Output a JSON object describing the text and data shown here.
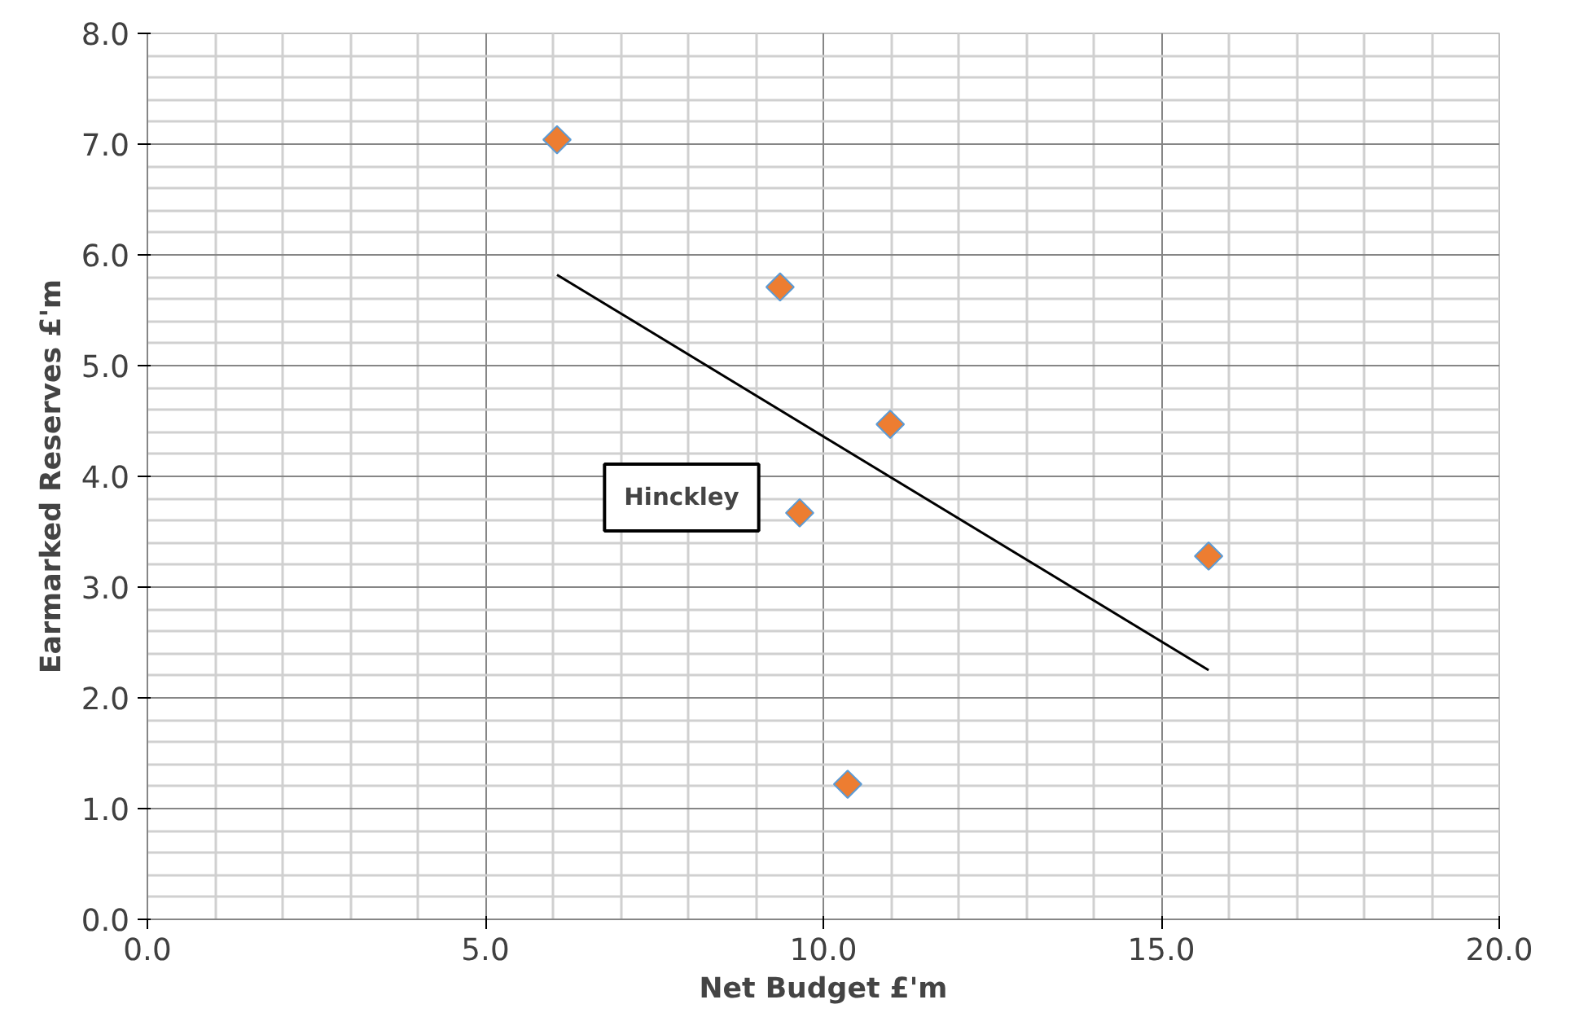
{
  "chart_data": {
    "type": "scatter",
    "xlabel": "Net Budget £'m",
    "ylabel": "Earmarked Reserves £'m",
    "xlim": [
      0,
      20
    ],
    "xticks": [
      {
        "value": 0,
        "label": "0.0"
      },
      {
        "value": 5,
        "label": "5.0"
      },
      {
        "value": 10,
        "label": "10.0"
      },
      {
        "value": 15,
        "label": "15.0"
      },
      {
        "value": 20,
        "label": "20.0"
      }
    ],
    "ylim": [
      0,
      8
    ],
    "yticks": [
      {
        "value": 0,
        "label": "0.0"
      },
      {
        "value": 1,
        "label": "1.0"
      },
      {
        "value": 2,
        "label": "2.0"
      },
      {
        "value": 3,
        "label": "3.0"
      },
      {
        "value": 4,
        "label": "4.0"
      },
      {
        "value": 5,
        "label": "5.0"
      },
      {
        "value": 6,
        "label": "6.0"
      },
      {
        "value": 7,
        "label": "7.0"
      },
      {
        "value": 8,
        "label": "8.0"
      }
    ],
    "grid": true,
    "series": [
      {
        "marker": "diamond",
        "color": "#ed7d31",
        "x": [
          6.06,
          9.36,
          9.65,
          10.36,
          10.99,
          15.7
        ],
        "values": [
          7.04,
          5.71,
          3.67,
          1.22,
          4.47,
          3.28
        ]
      },
      {
        "type": "line",
        "color": "#000000",
        "x": [
          6.06,
          15.7
        ],
        "values": [
          5.82,
          2.25
        ]
      }
    ],
    "annotations": [
      "Hinckley"
    ]
  }
}
